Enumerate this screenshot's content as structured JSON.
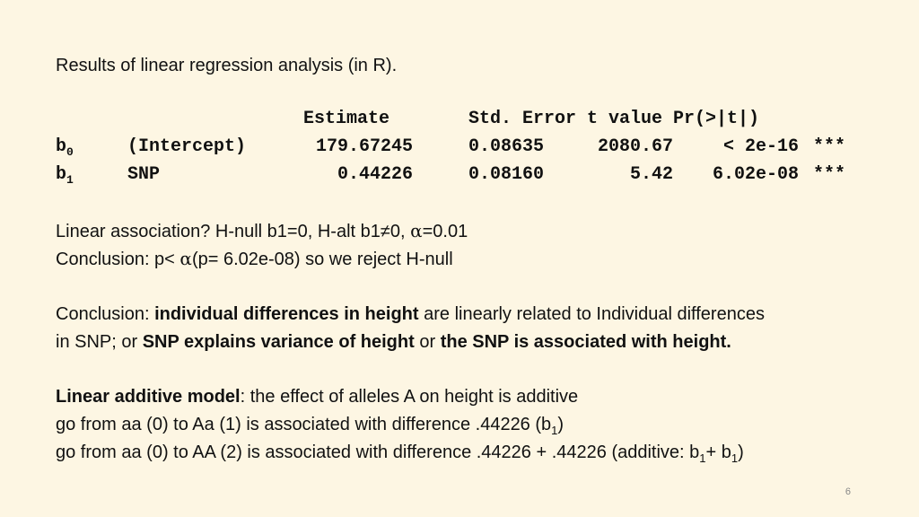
{
  "heading": "Results of linear regression analysis (in R).",
  "table": {
    "header": {
      "estimate": "Estimate",
      "rest": "Std. Error t value Pr(>|t|)"
    },
    "rows": [
      {
        "coef": "b",
        "sub": "0",
        "name": "(Intercept)",
        "estimate": "179.67245",
        "se": "0.08635",
        "t": "2080.67",
        "p": "< 2e-16",
        "stars": "***"
      },
      {
        "coef": "b",
        "sub": "1",
        "name": "SNP",
        "estimate": "0.44226",
        "se": "0.08160",
        "t": "5.42",
        "p": "6.02e-08",
        "stars": "***"
      }
    ]
  },
  "hypothesis": {
    "text1": "Linear association? H-null b1=0, H-alt b1≠0, ",
    "alpha": "α",
    "text2": "=0.01"
  },
  "conclusion1": {
    "text1": "Conclusion: p< ",
    "alpha": "α",
    "text2": "(p= 6.02e-08) so we reject H-null"
  },
  "conclusion2": {
    "prefix": "Conclusion: ",
    "bold1": "individual differences in height",
    "mid1": " are linearly related to Individual differences",
    "line2_prefix": "in SNP; or ",
    "bold2": "SNP explains variance of height",
    "mid2": " or ",
    "bold3": "the SNP is associated with height."
  },
  "model": {
    "bold": "Linear additive model",
    "rest": ": the effect of alleles A on height is additive",
    "line2": "go from aa (0) to Aa (1) is associated with difference .44226 (b",
    "line2_sub": "1",
    "line2_end": ")",
    "line3": "go from aa (0) to AA (2) is associated with difference .44226 + .44226 (additive: b",
    "line3_sub1": "1",
    "line3_mid": "+ b",
    "line3_sub2": "1",
    "line3_end": ")"
  },
  "page_number": "6"
}
